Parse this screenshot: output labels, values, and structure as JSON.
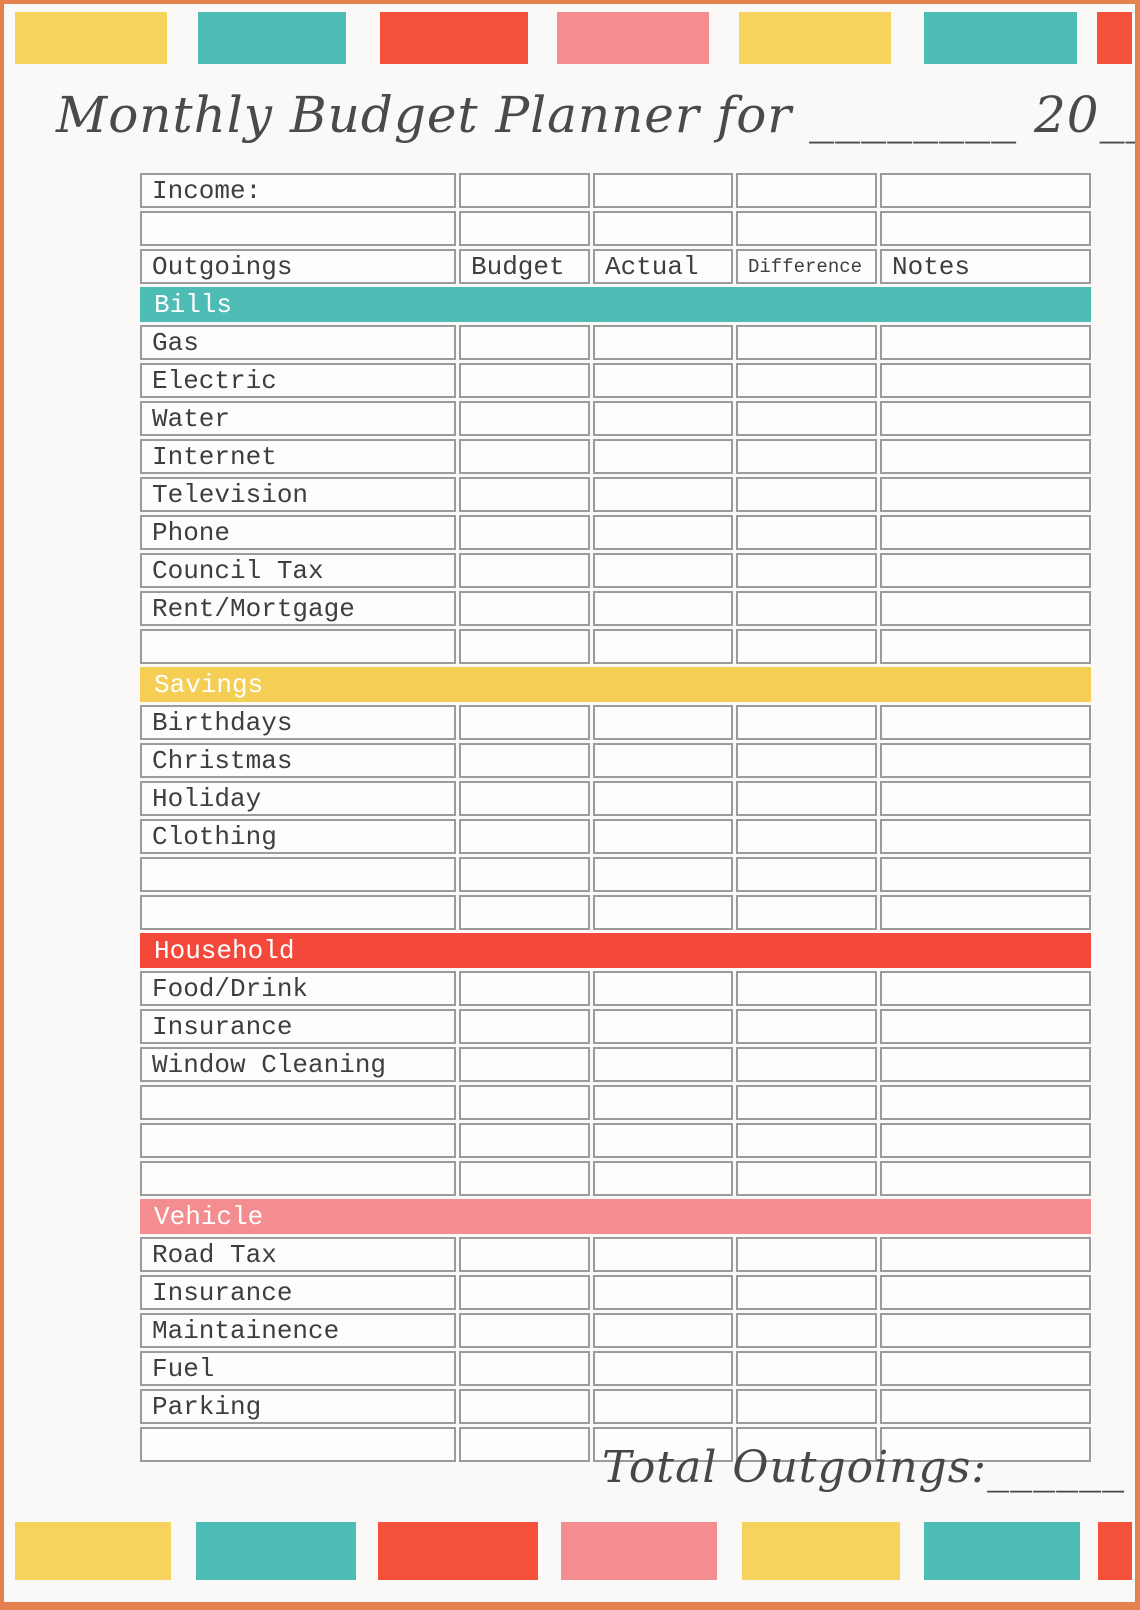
{
  "page": {
    "title": "Monthly Budget Planner for ________ 20__",
    "total_outgoings_label": "Total Outgoings:______"
  },
  "colors": {
    "yellow": "#F6D35D",
    "teal": "#4CBCB4",
    "red": "#F4503A",
    "pink": "#F48D90",
    "frame_orange": "#E5814E",
    "grid_gray": "#9B9B9B"
  },
  "decor": {
    "top_blocks": [
      "yellow",
      "teal",
      "red",
      "pink",
      "yellow",
      "teal",
      "red"
    ],
    "bottom_blocks": [
      "yellow",
      "teal",
      "red",
      "pink",
      "yellow",
      "teal",
      "red"
    ]
  },
  "table": {
    "income_label": "Income:",
    "headers": [
      "Outgoings",
      "Budget",
      "Actual",
      "Difference",
      "Notes"
    ],
    "sections": [
      {
        "name": "Bills",
        "color": "#4CBCB4",
        "items": [
          "Gas",
          "Electric",
          "Water",
          "Internet",
          "Television",
          "Phone",
          "Council Tax",
          "Rent/Mortgage"
        ],
        "empty_rows_after": 1
      },
      {
        "name": "Savings",
        "color": "#F5CE55",
        "items": [
          "Birthdays",
          "Christmas",
          "Holiday",
          "Clothing"
        ],
        "empty_rows_after": 2
      },
      {
        "name": "Household",
        "color": "#F4483A",
        "items": [
          "Food/Drink",
          "Insurance",
          "Window Cleaning"
        ],
        "empty_rows_after": 3
      },
      {
        "name": "Vehicle",
        "color": "#F48D90",
        "items": [
          "Road Tax",
          "Insurance",
          "Maintainence",
          "Fuel",
          "Parking"
        ],
        "empty_rows_after": 1
      }
    ]
  }
}
